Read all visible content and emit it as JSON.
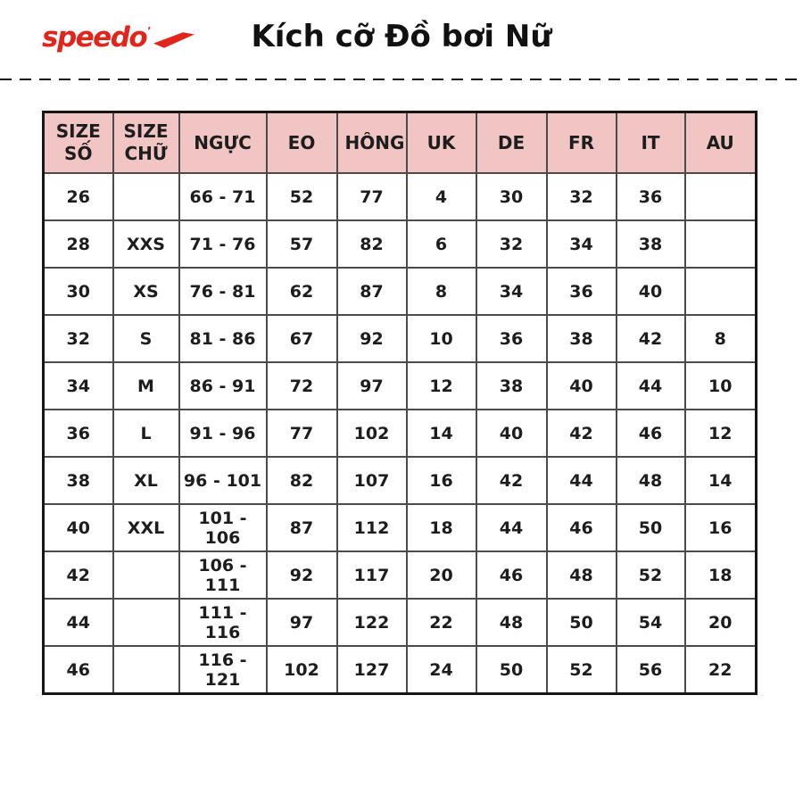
{
  "brand": {
    "logo_text": "speedo",
    "logo_mark": "’",
    "logo_color": "#e1251b"
  },
  "header": {
    "title": "Kích cỡ Đồ bơi Nữ"
  },
  "colors": {
    "header_bg": "#f1c5c3",
    "border_inner": "#4b4b4b",
    "border_outer": "#161616",
    "text": "#1d1d1d"
  },
  "table": {
    "columns": [
      "SIZE SỐ",
      "SIZE CHỮ",
      "NGỰC",
      "EO",
      "HÔNG",
      "UK",
      "DE",
      "FR",
      "IT",
      "AU"
    ],
    "rows": [
      [
        "26",
        "",
        "66 - 71",
        "52",
        "77",
        "4",
        "30",
        "32",
        "36",
        ""
      ],
      [
        "28",
        "XXS",
        "71 - 76",
        "57",
        "82",
        "6",
        "32",
        "34",
        "38",
        ""
      ],
      [
        "30",
        "XS",
        "76 - 81",
        "62",
        "87",
        "8",
        "34",
        "36",
        "40",
        ""
      ],
      [
        "32",
        "S",
        "81 - 86",
        "67",
        "92",
        "10",
        "36",
        "38",
        "42",
        "8"
      ],
      [
        "34",
        "M",
        "86 - 91",
        "72",
        "97",
        "12",
        "38",
        "40",
        "44",
        "10"
      ],
      [
        "36",
        "L",
        "91 - 96",
        "77",
        "102",
        "14",
        "40",
        "42",
        "46",
        "12"
      ],
      [
        "38",
        "XL",
        "96 - 101",
        "82",
        "107",
        "16",
        "42",
        "44",
        "48",
        "14"
      ],
      [
        "40",
        "XXL",
        "101 - 106",
        "87",
        "112",
        "18",
        "44",
        "46",
        "50",
        "16"
      ],
      [
        "42",
        "",
        "106 - 111",
        "92",
        "117",
        "20",
        "46",
        "48",
        "52",
        "18"
      ],
      [
        "44",
        "",
        "111 - 116",
        "97",
        "122",
        "22",
        "48",
        "50",
        "54",
        "20"
      ],
      [
        "46",
        "",
        "116 - 121",
        "102",
        "127",
        "24",
        "50",
        "52",
        "56",
        "22"
      ]
    ]
  }
}
